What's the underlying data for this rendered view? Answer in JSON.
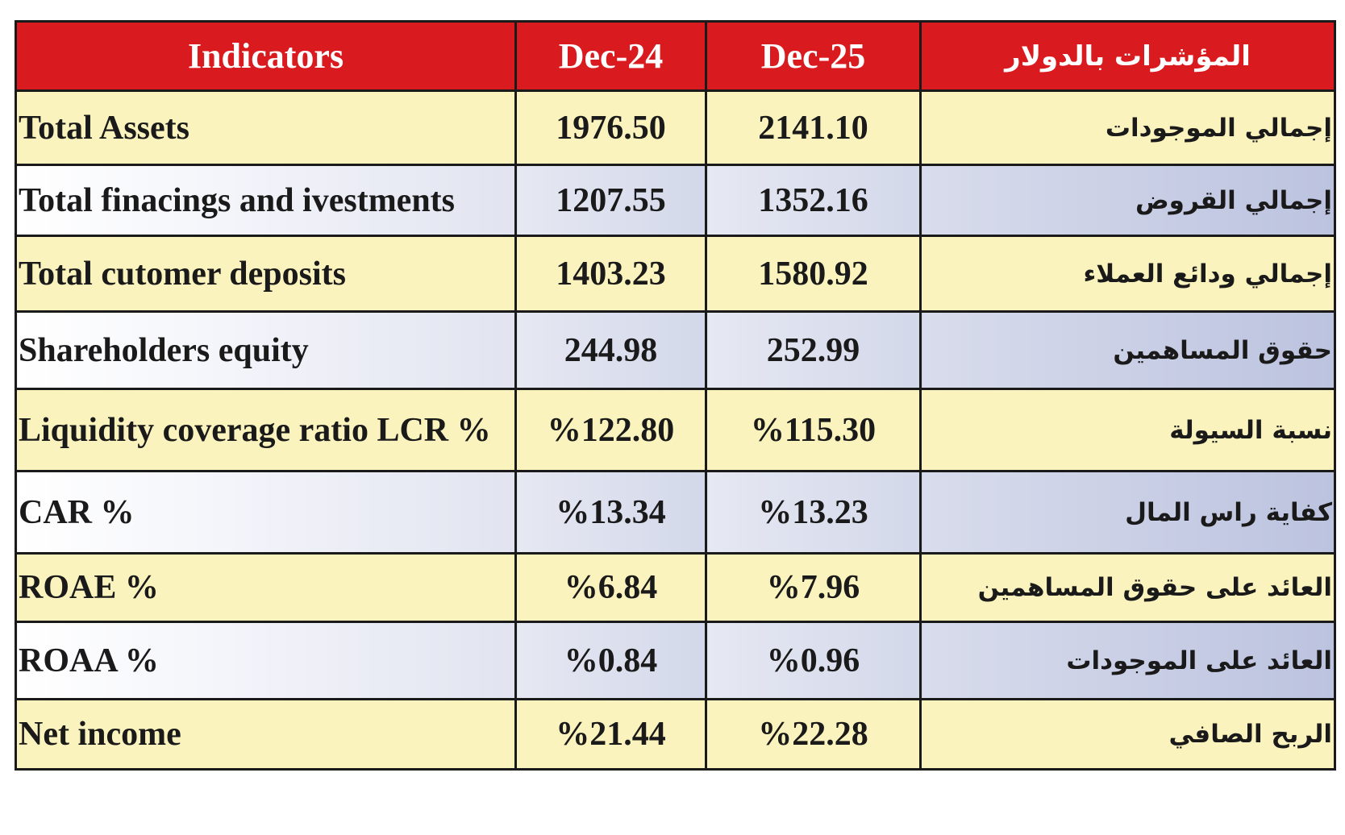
{
  "headers": [
    "Indicators",
    "Dec-24",
    "Dec-25",
    "المؤشرات بالدولار"
  ],
  "rows": [
    {
      "en": "Total Assets",
      "dec24": "1976.50",
      "dec25": "2141.10",
      "ar": "إجمالي الموجودات"
    },
    {
      "en": "Total finacings and ivestments",
      "dec24": "1207.55",
      "dec25": "1352.16",
      "ar": "إجمالي القروض"
    },
    {
      "en": "Total cutomer deposits",
      "dec24": "1403.23",
      "dec25": "1580.92",
      "ar": "إجمالي ودائع العملاء"
    },
    {
      "en": "Shareholders equity",
      "dec24": "244.98",
      "dec25": "252.99",
      "ar": "حقوق المساهمين"
    },
    {
      "en": "Liquidity coverage ratio LCR  %",
      "dec24": "%122.80",
      "dec25": "%115.30",
      "ar": "نسبة السيولة"
    },
    {
      "en": "CAR  %",
      "dec24": "%13.34",
      "dec25": "%13.23",
      "ar": "كفاية راس المال"
    },
    {
      "en": "ROAE  %",
      "dec24": "%6.84",
      "dec25": "%7.96",
      "ar": "العائد على حقوق المساهمين"
    },
    {
      "en": "ROAA  %",
      "dec24": "%0.84",
      "dec25": "%0.96",
      "ar": "العائد على الموجودات"
    },
    {
      "en": "Net income",
      "dec24": "%21.44",
      "dec25": "%22.28",
      "ar": "الربح الصافي"
    }
  ],
  "colors": {
    "header_bg": "#d91a1f",
    "header_text": "#ffffff",
    "row_yellow": "#fbf3bd",
    "row_blue": "#d3d8ea",
    "border": "#1a1a1a"
  }
}
